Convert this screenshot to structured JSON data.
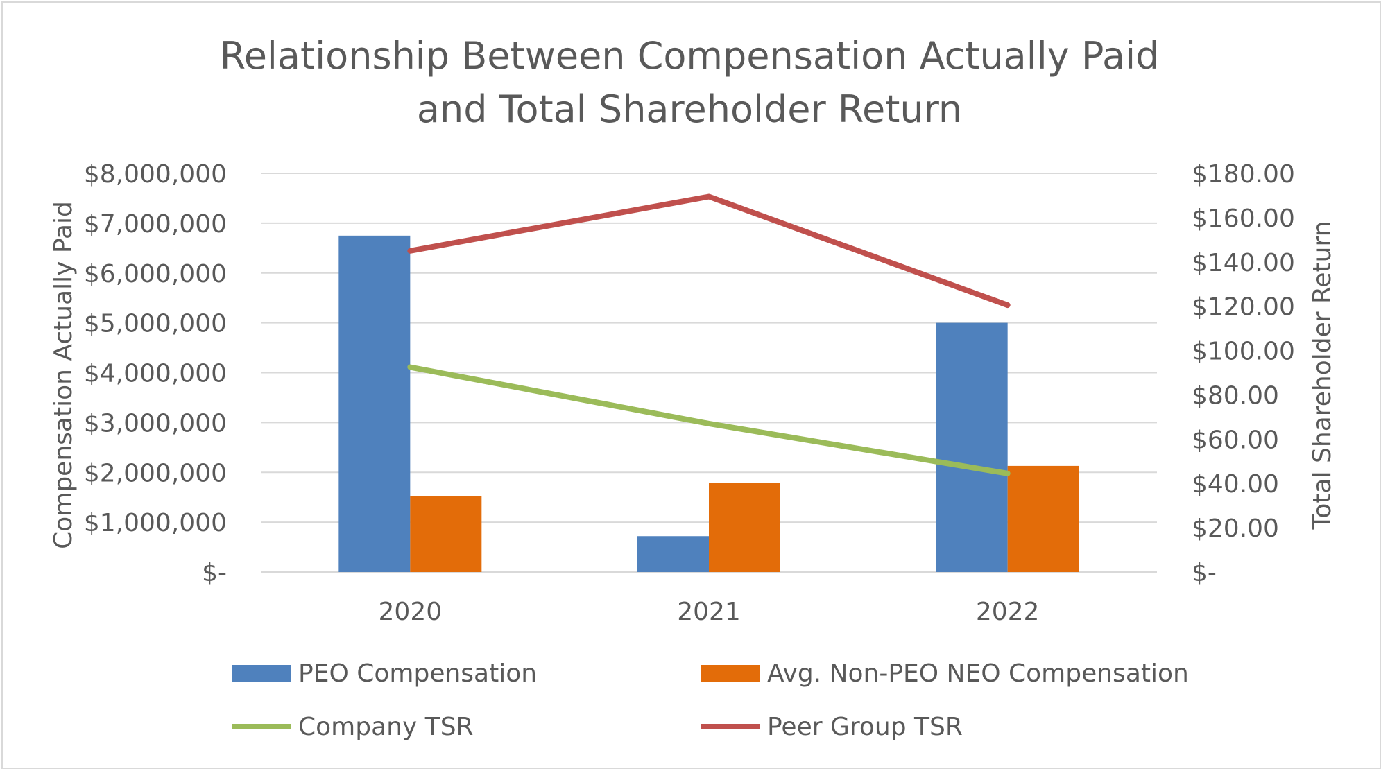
{
  "chart_data": {
    "type": "bar",
    "title": [
      "Relationship Between Compensation Actually Paid",
      "and Total Shareholder Return"
    ],
    "ylabel": "Compensation Actually Paid",
    "y2label": "Total Shareholder Return",
    "categories": [
      "2020",
      "2021",
      "2022"
    ],
    "ylim": [
      0,
      8000000
    ],
    "y2lim": [
      0,
      180
    ],
    "y_ticks": [
      {
        "value": 0,
        "label": "$-"
      },
      {
        "value": 1000000,
        "label": "$1,000,000"
      },
      {
        "value": 2000000,
        "label": "$2,000,000"
      },
      {
        "value": 3000000,
        "label": "$3,000,000"
      },
      {
        "value": 4000000,
        "label": "$4,000,000"
      },
      {
        "value": 5000000,
        "label": "$5,000,000"
      },
      {
        "value": 6000000,
        "label": "$6,000,000"
      },
      {
        "value": 7000000,
        "label": "$7,000,000"
      },
      {
        "value": 8000000,
        "label": "$8,000,000"
      }
    ],
    "y2_ticks": [
      {
        "value": 0,
        "label": "$-"
      },
      {
        "value": 20,
        "label": "$20.00"
      },
      {
        "value": 40,
        "label": "$40.00"
      },
      {
        "value": 60,
        "label": "$60.00"
      },
      {
        "value": 80,
        "label": "$80.00"
      },
      {
        "value": 100,
        "label": "$100.00"
      },
      {
        "value": 120,
        "label": "$120.00"
      },
      {
        "value": 140,
        "label": "$140.00"
      },
      {
        "value": 160,
        "label": "$160.00"
      },
      {
        "value": 180,
        "label": "$180.00"
      }
    ],
    "series": [
      {
        "name": "PEO Compensation",
        "type": "bar",
        "axis": "left",
        "color": "#4f81bd",
        "values": [
          6750000,
          720000,
          5000000
        ]
      },
      {
        "name": "Avg. Non-PEO NEO Compensation",
        "type": "bar",
        "axis": "left",
        "color": "#e36c09",
        "values": [
          1520000,
          1790000,
          2130000
        ]
      },
      {
        "name": "Company TSR",
        "type": "line",
        "axis": "right",
        "color": "#9bbb59",
        "values": [
          92.5,
          67,
          44.5
        ]
      },
      {
        "name": "Peer Group TSR",
        "type": "line",
        "axis": "right",
        "color": "#c0504d",
        "values": [
          145,
          169.5,
          120.5
        ]
      }
    ],
    "legend_position": "bottom",
    "grid": true
  }
}
